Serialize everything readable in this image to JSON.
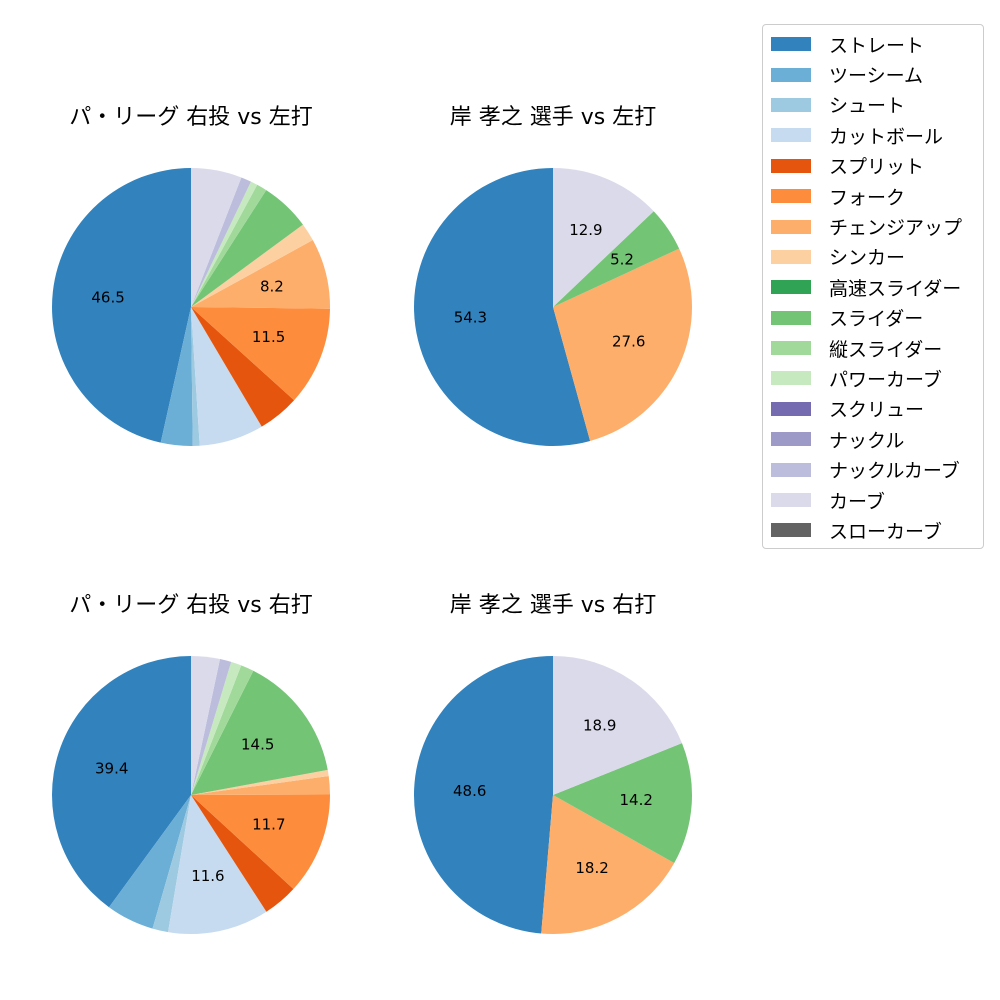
{
  "legend": {
    "entries": [
      {
        "label": "ストレート",
        "color": "#3182bd"
      },
      {
        "label": "ツーシーム",
        "color": "#6baed6"
      },
      {
        "label": "シュート",
        "color": "#9ecae1"
      },
      {
        "label": "カットボール",
        "color": "#c6dbef"
      },
      {
        "label": "スプリット",
        "color": "#e6550d"
      },
      {
        "label": "フォーク",
        "color": "#fd8d3c"
      },
      {
        "label": "チェンジアップ",
        "color": "#fdae6b"
      },
      {
        "label": "シンカー",
        "color": "#fdd0a2"
      },
      {
        "label": "高速スライダー",
        "color": "#31a354"
      },
      {
        "label": "スライダー",
        "color": "#74c476"
      },
      {
        "label": "縦スライダー",
        "color": "#a1d99b"
      },
      {
        "label": "パワーカーブ",
        "color": "#c7e9c0"
      },
      {
        "label": "スクリュー",
        "color": "#756bb1"
      },
      {
        "label": "ナックル",
        "color": "#9e9ac8"
      },
      {
        "label": "ナックルカーブ",
        "color": "#bcbddc"
      },
      {
        "label": "カーブ",
        "color": "#dadaeb"
      },
      {
        "label": "スローカーブ",
        "color": "#636363"
      }
    ]
  },
  "chart_data": [
    {
      "type": "pie",
      "title": "パ・リーグ 右投 vs 左打",
      "slices": [
        {
          "label": "ストレート",
          "value": 46.5,
          "show_label": true
        },
        {
          "label": "ツーシーム",
          "value": 3.7,
          "show_label": false
        },
        {
          "label": "シュート",
          "value": 0.8,
          "show_label": false
        },
        {
          "label": "カットボール",
          "value": 7.5,
          "show_label": false
        },
        {
          "label": "スプリット",
          "value": 4.8,
          "show_label": false
        },
        {
          "label": "フォーク",
          "value": 11.5,
          "show_label": true
        },
        {
          "label": "チェンジアップ",
          "value": 8.2,
          "show_label": true
        },
        {
          "label": "シンカー",
          "value": 2.1,
          "show_label": false
        },
        {
          "label": "スライダー",
          "value": 5.8,
          "show_label": false
        },
        {
          "label": "縦スライダー",
          "value": 1.2,
          "show_label": false
        },
        {
          "label": "パワーカーブ",
          "value": 0.8,
          "show_label": false
        },
        {
          "label": "ナックルカーブ",
          "value": 1.2,
          "show_label": false
        },
        {
          "label": "カーブ",
          "value": 5.9,
          "show_label": false
        }
      ]
    },
    {
      "type": "pie",
      "title": "岸 孝之 選手 vs 左打",
      "slices": [
        {
          "label": "ストレート",
          "value": 54.3,
          "show_label": true
        },
        {
          "label": "チェンジアップ",
          "value": 27.6,
          "show_label": true
        },
        {
          "label": "スライダー",
          "value": 5.2,
          "show_label": true
        },
        {
          "label": "カーブ",
          "value": 12.9,
          "show_label": true
        }
      ]
    },
    {
      "type": "pie",
      "title": "パ・リーグ 右投 vs 右打",
      "slices": [
        {
          "label": "ストレート",
          "value": 39.4,
          "show_label": true
        },
        {
          "label": "ツーシーム",
          "value": 5.5,
          "show_label": false
        },
        {
          "label": "シュート",
          "value": 1.8,
          "show_label": false
        },
        {
          "label": "カットボール",
          "value": 11.6,
          "show_label": true
        },
        {
          "label": "スプリット",
          "value": 4.0,
          "show_label": false
        },
        {
          "label": "フォーク",
          "value": 11.7,
          "show_label": true
        },
        {
          "label": "チェンジアップ",
          "value": 2.1,
          "show_label": false
        },
        {
          "label": "シンカー",
          "value": 0.7,
          "show_label": false
        },
        {
          "label": "スライダー",
          "value": 14.5,
          "show_label": true
        },
        {
          "label": "縦スライダー",
          "value": 1.5,
          "show_label": false
        },
        {
          "label": "パワーカーブ",
          "value": 1.2,
          "show_label": false
        },
        {
          "label": "ナックルカーブ",
          "value": 1.3,
          "show_label": false
        },
        {
          "label": "カーブ",
          "value": 3.3,
          "show_label": false
        }
      ]
    },
    {
      "type": "pie",
      "title": "岸 孝之 選手 vs 右打",
      "slices": [
        {
          "label": "ストレート",
          "value": 48.6,
          "show_label": true
        },
        {
          "label": "チェンジアップ",
          "value": 18.2,
          "show_label": true
        },
        {
          "label": "スライダー",
          "value": 14.2,
          "show_label": true
        },
        {
          "label": "カーブ",
          "value": 18.9,
          "show_label": true
        }
      ]
    }
  ]
}
